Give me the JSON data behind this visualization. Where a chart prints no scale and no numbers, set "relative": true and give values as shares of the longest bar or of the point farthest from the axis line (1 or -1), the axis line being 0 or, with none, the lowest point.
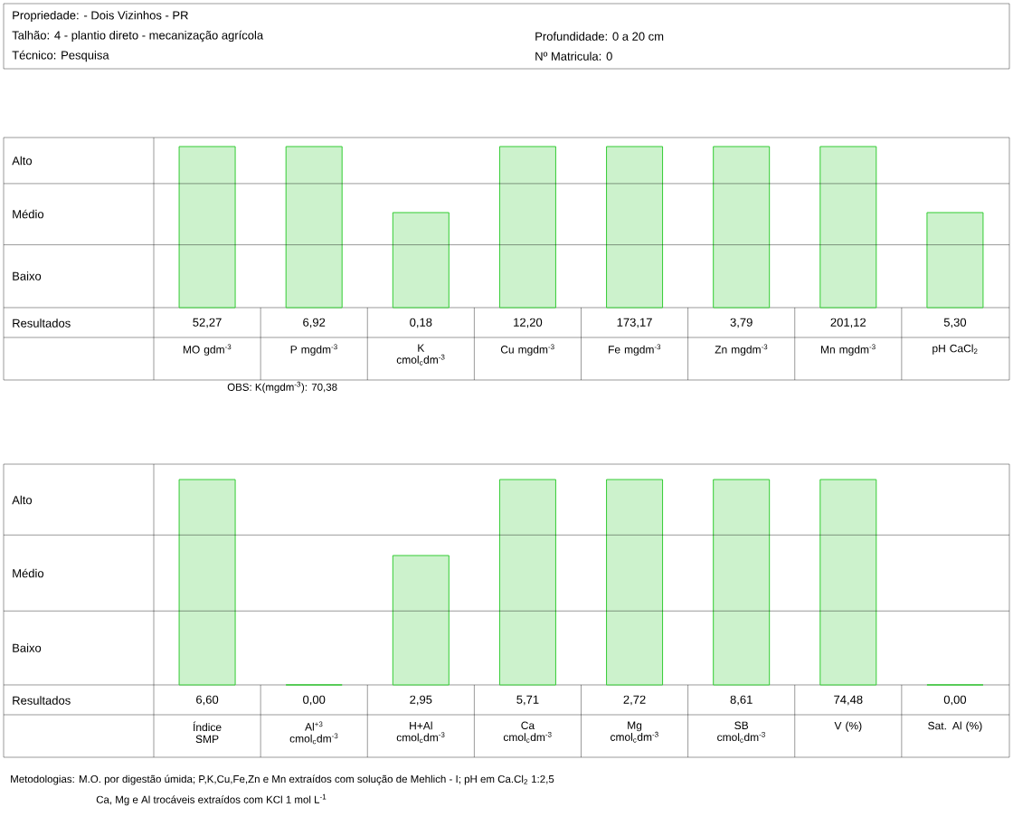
{
  "chart_data": [
    {
      "type": "bar",
      "relative": true,
      "color": "#33cc33",
      "categories": [
        "MO gdm$^{-3}$",
        "P mgdm$^{-3}$",
        "K cmol$_{c}$dm$^{-3}$",
        "Cu mgdm$^{-3}$",
        "Fe mgdm$^{-3}$",
        "Zn mgdm$^{-3}$",
        "Mn mgdm$^{-3}$",
        "pH CaCl$_{2}$"
      ],
      "values": [
        1,
        1,
        0.59,
        1,
        1,
        1,
        1,
        0.59
      ],
      "ref_lines": [
        {
          "axis": "y",
          "value": 0.77
        },
        {
          "axis": "y",
          "value": 0.39
        }
      ],
      "annotations": [
        "Propriedade: - Dois Vizinhos - PR",
        "Talhão: 4 - plantio direto - mecanização agrícola",
        "Técnico: Pesquisa",
        "Profundidade: 0 a 20 cm",
        "Nº Matricula: 0",
        "OBS: K(mgdm$^{-3}$): 70,38",
        "Alto",
        "Médio",
        "Baixo",
        "Resultados",
        "52,27",
        "6,92",
        "0,18",
        "12,20",
        "173,17",
        "3,79",
        "201,12",
        "5,30"
      ]
    },
    {
      "type": "bar",
      "relative": true,
      "color": "#33cc33",
      "categories": [
        "Índice SMP",
        "Al$^{+3}$ cmol$_{c}$dm$^{-3}$",
        "H+Al cmol$_{c}$dm$^{-3}$",
        "Ca cmol$_{c}$dm$^{-3}$",
        "Mg cmol$_{c}$dm$^{-3}$",
        "SB cmol$_{c}$dm$^{-3}$",
        "V (%)",
        "Sat. Al (%)"
      ],
      "values": [
        1,
        0,
        0.63,
        1,
        1,
        1,
        1,
        0
      ],
      "ref_lines": [
        {
          "axis": "y",
          "value": 0.73
        },
        {
          "axis": "y",
          "value": 0.36
        }
      ],
      "annotations": [
        "Metodologias: M.O. por digestão úmida; P,K,Cu,Fe,Zn e Mn extraídos com solução de Mehlich - I; pH em Ca.Cl$_{2}$ 1:2,5",
        "Ca, Mg e Al trocáveis extraídos com KCl 1 mol L$^{-1}$",
        "Alto",
        "Médio",
        "Baixo",
        "Resultados",
        "6,60",
        "0,00",
        "2,95",
        "5,71",
        "2,72",
        "8,61",
        "74,48",
        "0,00"
      ]
    }
  ]
}
